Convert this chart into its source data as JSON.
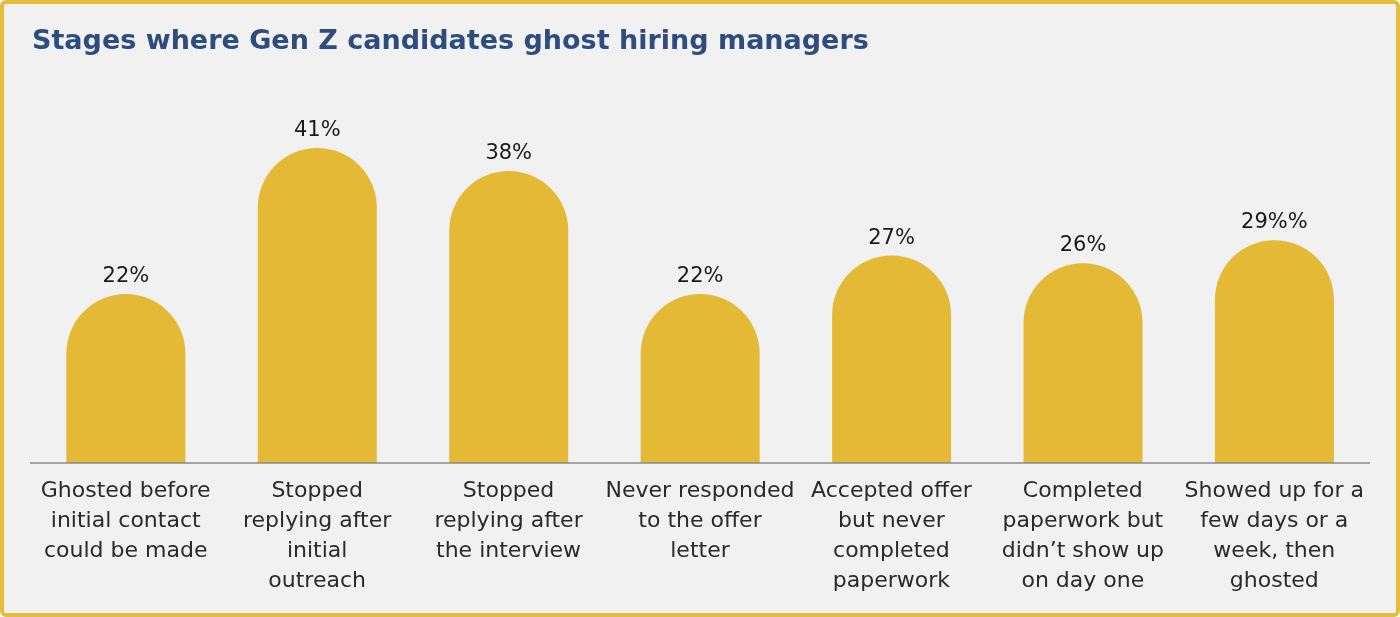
{
  "chart_data": {
    "type": "bar",
    "title": "Stages where Gen Z candidates ghost hiring managers",
    "categories": [
      "Ghosted before initial contact could be made",
      "Stopped replying after initial outreach",
      "Stopped replying after the interview",
      "Never responded to the offer letter",
      "Accepted offer but never completed paperwork",
      "Completed paperwork but didn’t show up on day one",
      "Showed up for a few days or a week, then ghosted"
    ],
    "values": [
      22,
      41,
      38,
      22,
      27,
      26,
      29
    ],
    "value_labels": [
      "22%",
      "41%",
      "38%",
      "22%",
      "27%",
      "26%",
      "29%%"
    ],
    "color": "#e3b935"
  }
}
